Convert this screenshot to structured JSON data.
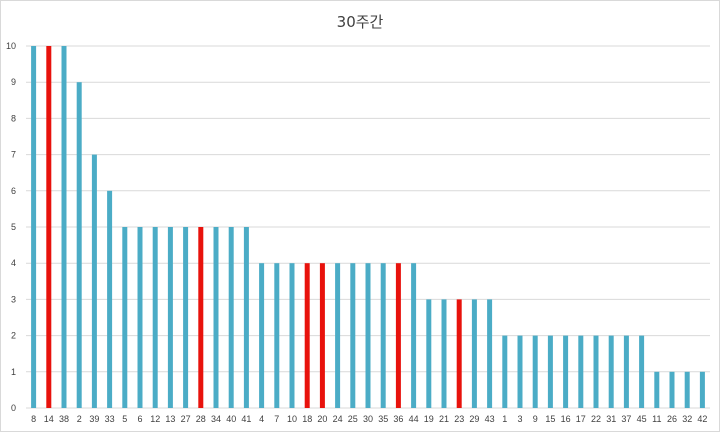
{
  "chart_data": {
    "type": "bar",
    "title": "30주간",
    "xlabel": "",
    "ylabel": "",
    "ylim": [
      0,
      10
    ],
    "yticks": [
      0,
      1,
      2,
      3,
      4,
      5,
      6,
      7,
      8,
      9,
      10
    ],
    "grid": true,
    "legend": "none",
    "categories": [
      "8",
      "14",
      "38",
      "2",
      "39",
      "33",
      "5",
      "6",
      "12",
      "13",
      "27",
      "28",
      "34",
      "40",
      "41",
      "4",
      "7",
      "10",
      "18",
      "20",
      "24",
      "25",
      "30",
      "35",
      "36",
      "44",
      "19",
      "21",
      "23",
      "29",
      "43",
      "1",
      "3",
      "9",
      "15",
      "16",
      "17",
      "22",
      "31",
      "37",
      "45",
      "11",
      "26",
      "32",
      "42"
    ],
    "values": [
      10,
      10,
      10,
      9,
      7,
      6,
      5,
      5,
      5,
      5,
      5,
      5,
      5,
      5,
      5,
      4,
      4,
      4,
      4,
      4,
      4,
      4,
      4,
      4,
      4,
      4,
      3,
      3,
      3,
      3,
      3,
      2,
      2,
      2,
      2,
      2,
      2,
      2,
      2,
      2,
      2,
      1,
      1,
      1,
      1
    ],
    "highlighted": [
      "14",
      "28",
      "18",
      "20",
      "36",
      "23"
    ],
    "colors": {
      "bar": "#4bacc6",
      "highlight": "#e8120c"
    }
  }
}
